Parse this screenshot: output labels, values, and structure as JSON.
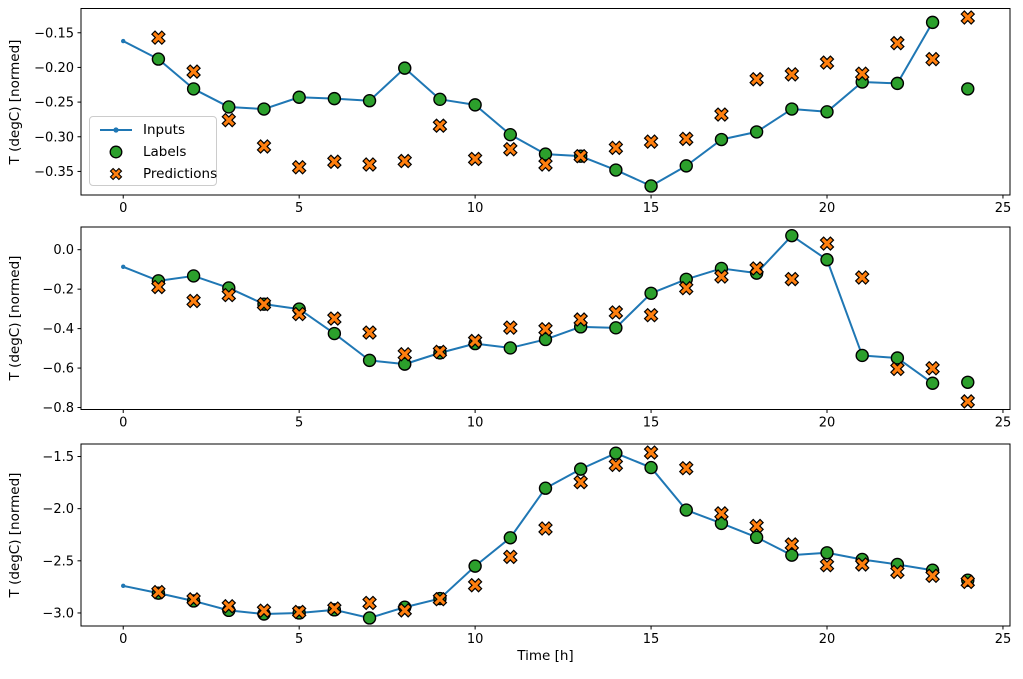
{
  "figure": {
    "background": "#ffffff",
    "ylabel": "T (degC) [normed]",
    "xlabel": "Time [h]",
    "legend": {
      "position": "center-left-of-first-subplot",
      "entries": [
        {
          "label": "Inputs",
          "marker": "line-with-dot"
        },
        {
          "label": "Labels",
          "marker": "filled-circle"
        },
        {
          "label": "Predictions",
          "marker": "filled-x"
        }
      ]
    },
    "colors": {
      "inputs": "#1f77b4",
      "labels": "#2ca02c",
      "predictions": "#ff7f0e",
      "marker_edge": "#000000",
      "axis": "#000000"
    }
  },
  "chart_data": [
    {
      "type": "line",
      "position": "top",
      "ylabel": "T (degC) [normed]",
      "xlabel": "",
      "grid": false,
      "legend_visible": true,
      "xlim": [
        -1.2,
        25.2
      ],
      "ylim": [
        -0.384,
        -0.115
      ],
      "xticks": {
        "values": [
          0,
          5,
          10,
          15,
          20,
          25
        ],
        "labels": [
          "0",
          "5",
          "10",
          "15",
          "20",
          "25"
        ]
      },
      "yticks": {
        "values": [
          -0.15,
          -0.2,
          -0.25,
          -0.3,
          -0.35
        ],
        "labels": [
          "−0.15",
          "−0.20",
          "−0.25",
          "−0.30",
          "−0.35"
        ]
      },
      "series": [
        {
          "name": "Inputs",
          "marker": "dot-line",
          "x": [
            0,
            1,
            2,
            3,
            4,
            5,
            6,
            7,
            8,
            9,
            10,
            11,
            12,
            13,
            14,
            15,
            16,
            17,
            18,
            19,
            20,
            21,
            22,
            23
          ],
          "y": [
            -0.162,
            -0.188,
            -0.231,
            -0.257,
            -0.26,
            -0.243,
            -0.245,
            -0.248,
            -0.201,
            -0.246,
            -0.254,
            -0.297,
            -0.325,
            -0.328,
            -0.348,
            -0.371,
            -0.342,
            -0.304,
            -0.293,
            -0.26,
            -0.264,
            -0.221,
            -0.223,
            -0.135
          ]
        },
        {
          "name": "Labels",
          "marker": "circle",
          "x": [
            1,
            2,
            3,
            4,
            5,
            6,
            7,
            8,
            9,
            10,
            11,
            12,
            13,
            14,
            15,
            16,
            17,
            18,
            19,
            20,
            21,
            22,
            23,
            24
          ],
          "y": [
            -0.188,
            -0.231,
            -0.257,
            -0.26,
            -0.243,
            -0.245,
            -0.248,
            -0.201,
            -0.246,
            -0.254,
            -0.297,
            -0.325,
            -0.328,
            -0.348,
            -0.371,
            -0.342,
            -0.304,
            -0.293,
            -0.26,
            -0.264,
            -0.221,
            -0.223,
            -0.135,
            -0.231
          ]
        },
        {
          "name": "Predictions",
          "marker": "X",
          "x": [
            1,
            2,
            3,
            4,
            5,
            6,
            7,
            8,
            9,
            10,
            11,
            12,
            13,
            14,
            15,
            16,
            17,
            18,
            19,
            20,
            21,
            22,
            23,
            24
          ],
          "y": [
            -0.157,
            -0.206,
            -0.276,
            -0.314,
            -0.344,
            -0.336,
            -0.34,
            -0.335,
            -0.284,
            -0.332,
            -0.318,
            -0.34,
            -0.328,
            -0.316,
            -0.307,
            -0.303,
            -0.268,
            -0.217,
            -0.21,
            -0.193,
            -0.209,
            -0.165,
            -0.188,
            -0.128
          ]
        }
      ]
    },
    {
      "type": "line",
      "position": "middle",
      "ylabel": "T (degC) [normed]",
      "xlabel": "",
      "grid": false,
      "legend_visible": false,
      "xlim": [
        -1.2,
        25.2
      ],
      "ylim": [
        -0.81,
        0.115
      ],
      "xticks": {
        "values": [
          0,
          5,
          10,
          15,
          20,
          25
        ],
        "labels": [
          "0",
          "5",
          "10",
          "15",
          "20",
          "25"
        ]
      },
      "yticks": {
        "values": [
          0.0,
          -0.2,
          -0.4,
          -0.6,
          -0.8
        ],
        "labels": [
          "0.0",
          "−0.2",
          "−0.4",
          "−0.6",
          "−0.8"
        ]
      },
      "series": [
        {
          "name": "Inputs",
          "marker": "dot-line",
          "x": [
            0,
            1,
            2,
            3,
            4,
            5,
            6,
            7,
            8,
            9,
            10,
            11,
            12,
            13,
            14,
            15,
            16,
            17,
            18,
            19,
            20,
            21,
            22,
            23
          ],
          "y": [
            -0.087,
            -0.158,
            -0.133,
            -0.194,
            -0.276,
            -0.301,
            -0.425,
            -0.561,
            -0.58,
            -0.523,
            -0.476,
            -0.498,
            -0.455,
            -0.391,
            -0.396,
            -0.221,
            -0.15,
            -0.095,
            -0.119,
            0.071,
            -0.051,
            -0.536,
            -0.549,
            -0.677
          ]
        },
        {
          "name": "Labels",
          "marker": "circle",
          "x": [
            1,
            2,
            3,
            4,
            5,
            6,
            7,
            8,
            9,
            10,
            11,
            12,
            13,
            14,
            15,
            16,
            17,
            18,
            19,
            20,
            21,
            22,
            23,
            24
          ],
          "y": [
            -0.158,
            -0.133,
            -0.194,
            -0.276,
            -0.301,
            -0.425,
            -0.561,
            -0.58,
            -0.523,
            -0.476,
            -0.498,
            -0.455,
            -0.391,
            -0.396,
            -0.221,
            -0.15,
            -0.095,
            -0.119,
            0.071,
            -0.051,
            -0.536,
            -0.549,
            -0.677,
            -0.672
          ]
        },
        {
          "name": "Predictions",
          "marker": "X",
          "x": [
            1,
            2,
            3,
            4,
            5,
            6,
            7,
            8,
            9,
            10,
            11,
            12,
            13,
            14,
            15,
            16,
            17,
            18,
            19,
            20,
            21,
            22,
            23,
            24
          ],
          "y": [
            -0.189,
            -0.26,
            -0.23,
            -0.276,
            -0.326,
            -0.349,
            -0.42,
            -0.53,
            -0.518,
            -0.463,
            -0.395,
            -0.403,
            -0.354,
            -0.318,
            -0.332,
            -0.195,
            -0.136,
            -0.095,
            -0.149,
            0.031,
            -0.141,
            -0.604,
            -0.601,
            -0.769
          ]
        }
      ]
    },
    {
      "type": "line",
      "position": "bottom",
      "ylabel": "T (degC) [normed]",
      "xlabel": "Time [h]",
      "grid": false,
      "legend_visible": false,
      "xlim": [
        -1.2,
        25.2
      ],
      "ylim": [
        -3.125,
        -1.38
      ],
      "xticks": {
        "values": [
          0,
          5,
          10,
          15,
          20,
          25
        ],
        "labels": [
          "0",
          "5",
          "10",
          "15",
          "20",
          "25"
        ]
      },
      "yticks": {
        "values": [
          -1.5,
          -2.0,
          -2.5,
          -3.0
        ],
        "labels": [
          "−1.5",
          "−2.0",
          "−2.5",
          "−3.0"
        ]
      },
      "series": [
        {
          "name": "Inputs",
          "marker": "dot-line",
          "x": [
            0,
            1,
            2,
            3,
            4,
            5,
            6,
            7,
            8,
            9,
            10,
            11,
            12,
            13,
            14,
            15,
            16,
            17,
            18,
            19,
            20,
            21,
            22,
            23
          ],
          "y": [
            -2.74,
            -2.81,
            -2.885,
            -2.975,
            -3.01,
            -3.0,
            -2.97,
            -3.048,
            -2.945,
            -2.862,
            -2.551,
            -2.279,
            -1.804,
            -1.621,
            -1.468,
            -1.606,
            -2.013,
            -2.141,
            -2.275,
            -2.446,
            -2.423,
            -2.487,
            -2.535,
            -2.59
          ]
        },
        {
          "name": "Labels",
          "marker": "circle",
          "x": [
            1,
            2,
            3,
            4,
            5,
            6,
            7,
            8,
            9,
            10,
            11,
            12,
            13,
            14,
            15,
            16,
            17,
            18,
            19,
            20,
            21,
            22,
            23,
            24
          ],
          "y": [
            -2.81,
            -2.885,
            -2.975,
            -3.01,
            -3.0,
            -2.97,
            -3.048,
            -2.945,
            -2.862,
            -2.551,
            -2.279,
            -1.804,
            -1.621,
            -1.468,
            -1.606,
            -2.013,
            -2.141,
            -2.275,
            -2.446,
            -2.423,
            -2.487,
            -2.535,
            -2.59,
            -2.686
          ]
        },
        {
          "name": "Predictions",
          "marker": "X",
          "x": [
            1,
            2,
            3,
            4,
            5,
            6,
            7,
            8,
            9,
            10,
            11,
            12,
            13,
            14,
            15,
            16,
            17,
            18,
            19,
            20,
            21,
            22,
            23,
            24
          ],
          "y": [
            -2.8,
            -2.87,
            -2.936,
            -2.978,
            -2.99,
            -2.958,
            -2.904,
            -2.975,
            -2.868,
            -2.734,
            -2.462,
            -2.19,
            -1.746,
            -1.58,
            -1.462,
            -1.612,
            -2.045,
            -2.166,
            -2.343,
            -2.542,
            -2.535,
            -2.606,
            -2.644,
            -2.702
          ]
        }
      ]
    }
  ]
}
